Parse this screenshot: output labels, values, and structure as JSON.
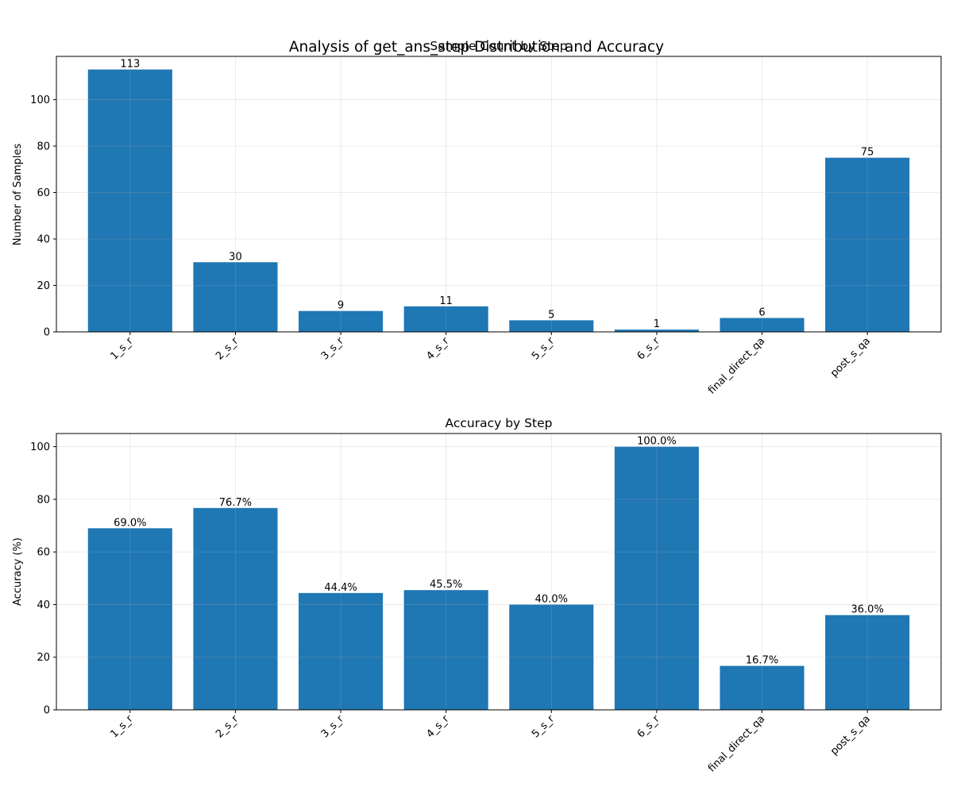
{
  "figure": {
    "suptitle": "Analysis of get_ans_step Distribution and Accuracy"
  },
  "colors": {
    "bar": "#1f77b4",
    "background": "#ffffff",
    "axes": "#000000",
    "grid": "#b0b0b0"
  },
  "chart_data": [
    {
      "type": "bar",
      "title": "Sample Count by Step",
      "xlabel": "",
      "ylabel": "Number of Samples",
      "categories": [
        "1_s_r",
        "2_s_r",
        "3_s_r",
        "4_s_r",
        "5_s_r",
        "6_s_r",
        "final_direct_qa",
        "post_s_qa"
      ],
      "values": [
        113,
        30,
        9,
        11,
        5,
        1,
        6,
        75
      ],
      "value_labels": [
        "113",
        "30",
        "9",
        "11",
        "5",
        "1",
        "6",
        "75"
      ],
      "ylim": [
        0,
        118.65
      ],
      "yticks": [
        0,
        20,
        40,
        60,
        80,
        100
      ],
      "grid": true,
      "legend": "none"
    },
    {
      "type": "bar",
      "title": "Accuracy by Step",
      "xlabel": "",
      "ylabel": "Accuracy (%)",
      "categories": [
        "1_s_r",
        "2_s_r",
        "3_s_r",
        "4_s_r",
        "5_s_r",
        "6_s_r",
        "final_direct_qa",
        "post_s_qa"
      ],
      "values": [
        69.0,
        76.7,
        44.4,
        45.5,
        40.0,
        100.0,
        16.7,
        36.0
      ],
      "value_labels": [
        "69.0%",
        "76.7%",
        "44.4%",
        "45.5%",
        "40.0%",
        "100.0%",
        "16.7%",
        "36.0%"
      ],
      "ylim": [
        0,
        105
      ],
      "yticks": [
        0,
        20,
        40,
        60,
        80,
        100
      ],
      "grid": true,
      "legend": "none"
    }
  ]
}
